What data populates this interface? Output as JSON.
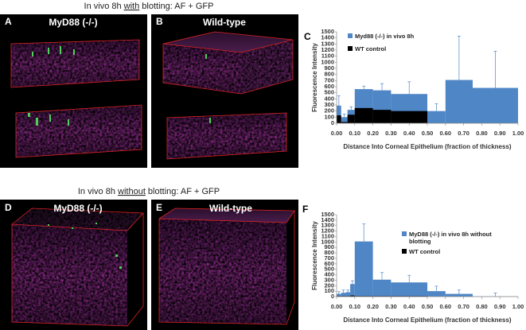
{
  "headings": [
    {
      "before": "In vivo 8h ",
      "emphasis": "with",
      "after": " blotting: AF + GFP"
    },
    {
      "before": "In vivo 8h ",
      "emphasis": "without",
      "after": " blotting: AF + GFP"
    }
  ],
  "panels": [
    {
      "letter": "A",
      "title": "MyD88 (-/-)"
    },
    {
      "letter": "B",
      "title": "Wild-type"
    },
    {
      "letter": "C"
    },
    {
      "letter": "D",
      "title": "MyD88 (-/-)"
    },
    {
      "letter": "E",
      "title": "Wild-type"
    },
    {
      "letter": "F"
    }
  ],
  "chart_data": [
    {
      "type": "histogram",
      "y_label": "Fluorescence Intensity",
      "x_label": "Distance Into Corneal Epithelium (fraction of thickness)",
      "bins": [
        0,
        0.025,
        0.06,
        0.1,
        0.2,
        0.3,
        0.5,
        0.6,
        0.75,
        1.0
      ],
      "series": [
        {
          "name": "Myd88 (-/-) in vivo 8h",
          "color": "#4f86c6",
          "values": [
            290,
            100,
            220,
            560,
            540,
            480,
            200,
            710,
            580
          ],
          "errors": [
            160,
            50,
            50,
            50,
            110,
            200,
            120,
            720,
            600
          ]
        },
        {
          "name": "WT control",
          "color": "#000000",
          "values": [
            130,
            20,
            140,
            250,
            220,
            200,
            0,
            0,
            0
          ]
        }
      ],
      "xlim": [
        0,
        1.0
      ],
      "ylim": [
        0,
        1500
      ],
      "xticks": [
        {
          "value": 0,
          "label": "0.00"
        },
        {
          "value": 0.1,
          "label": "0.10"
        },
        {
          "value": 0.2,
          "label": "0.20"
        },
        {
          "value": 0.3,
          "label": "0.30"
        },
        {
          "value": 0.4,
          "label": "0.40"
        },
        {
          "value": 0.5,
          "label": "0.50"
        },
        {
          "value": 0.6,
          "label": "0.60"
        },
        {
          "value": 0.7,
          "label": "0.70"
        },
        {
          "value": 0.8,
          "label": "0.80"
        },
        {
          "value": 0.9,
          "label": "0.90"
        },
        {
          "value": 1.0,
          "label": "1.00"
        }
      ],
      "yticks": [
        0,
        100,
        200,
        300,
        400,
        500,
        600,
        700,
        800,
        900,
        1000,
        1100,
        1200,
        1300,
        1400,
        1500
      ],
      "legend": "upper left"
    },
    {
      "type": "histogram",
      "y_label": "Fluorescence Intensity",
      "x_label": "Distance Into Corneal Epithelium (fraction of thickness)",
      "bins": [
        0,
        0.025,
        0.05,
        0.075,
        0.1,
        0.2,
        0.3,
        0.5,
        0.6,
        0.75,
        1.0
      ],
      "series": [
        {
          "name": "MyD88 (-/-) in vivo 8h without blotting",
          "color": "#4f86c6",
          "values": [
            50,
            70,
            80,
            230,
            1010,
            310,
            260,
            100,
            50,
            5
          ],
          "errors": [
            40,
            50,
            40,
            60,
            320,
            130,
            130,
            90,
            70,
            60
          ]
        },
        {
          "name": "WT control",
          "color": "#000000",
          "values": [
            10,
            10,
            10,
            20,
            10,
            10,
            10,
            0,
            0,
            0
          ]
        }
      ],
      "xlim": [
        0,
        1.0
      ],
      "ylim": [
        0,
        1500
      ],
      "xticks": [
        {
          "value": 0,
          "label": "0.00"
        },
        {
          "value": 0.1,
          "label": "0.10"
        },
        {
          "value": 0.2,
          "label": "0.20"
        },
        {
          "value": 0.3,
          "label": "0.30"
        },
        {
          "value": 0.4,
          "label": "0.40"
        },
        {
          "value": 0.5,
          "label": "0.50"
        },
        {
          "value": 0.6,
          "label": "0.60"
        },
        {
          "value": 0.7,
          "label": "0.70"
        },
        {
          "value": 0.8,
          "label": "0.80"
        },
        {
          "value": 0.9,
          "label": "0.90"
        },
        {
          "value": 1.0,
          "label": "1.00"
        }
      ],
      "yticks": [
        0,
        100,
        200,
        300,
        400,
        500,
        600,
        700,
        800,
        900,
        1000,
        1100,
        1200,
        1300,
        1400,
        1500
      ],
      "legend": "upper center"
    }
  ]
}
